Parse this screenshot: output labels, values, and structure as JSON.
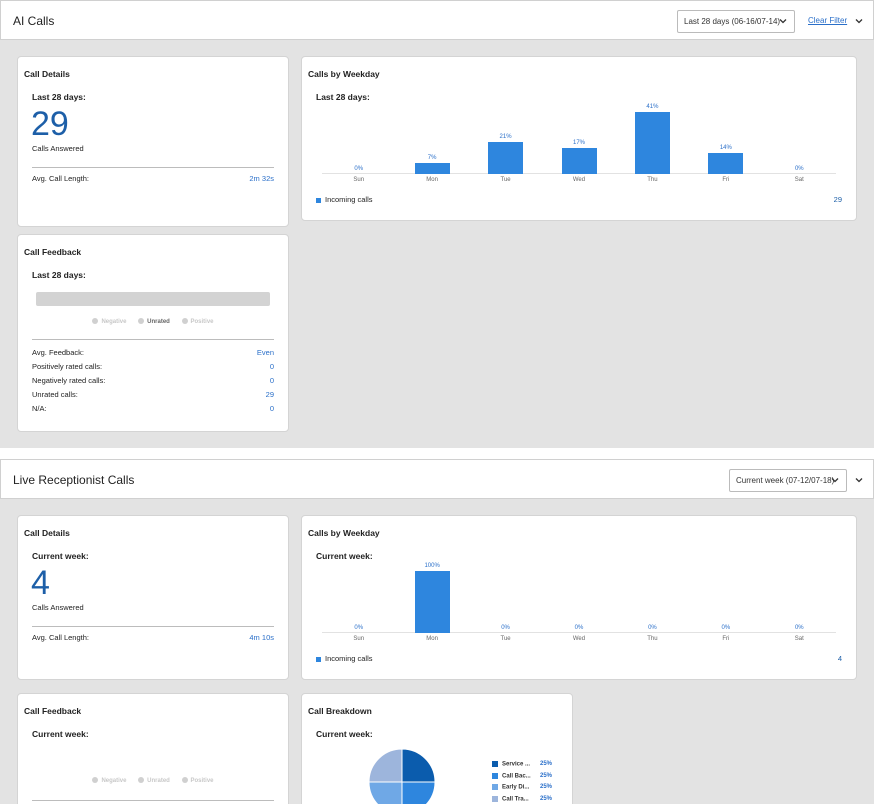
{
  "ai": {
    "title": "AI Calls",
    "filter": "Last 28 days (06-16/07-14)",
    "clear_filter": "Clear Filter",
    "details": {
      "title": "Call Details",
      "period": "Last 28 days:",
      "count": "29",
      "count_label": "Calls Answered",
      "avg_label": "Avg. Call Length:",
      "avg_value": "2m 32s"
    },
    "weekday": {
      "title": "Calls by Weekday",
      "period": "Last 28 days:",
      "legend": "Incoming calls",
      "total": "29"
    },
    "feedback": {
      "title": "Call Feedback",
      "period": "Last 28 days:",
      "legend": [
        "Negative",
        "Unrated",
        "Positive"
      ],
      "rows": [
        {
          "label": "Avg. Feedback:",
          "value": "Even"
        },
        {
          "label": "Positively rated calls:",
          "value": "0"
        },
        {
          "label": "Negatively rated calls:",
          "value": "0"
        },
        {
          "label": "Unrated calls:",
          "value": "29"
        },
        {
          "label": "N/A:",
          "value": "0"
        }
      ]
    }
  },
  "live": {
    "title": "Live Receptionist Calls",
    "filter": "Current week (07-12/07-18)",
    "details": {
      "title": "Call Details",
      "period": "Current week:",
      "count": "4",
      "count_label": "Calls Answered",
      "avg_label": "Avg. Call Length:",
      "avg_value": "4m 10s"
    },
    "weekday": {
      "title": "Calls by Weekday",
      "period": "Current week:",
      "legend": "Incoming calls",
      "total": "4"
    },
    "feedback": {
      "title": "Call Feedback",
      "period": "Current week:",
      "legend": [
        "Negative",
        "Unrated",
        "Positive"
      ]
    },
    "breakdown": {
      "title": "Call Breakdown",
      "period": "Current week:",
      "items": [
        {
          "label": "Service ...",
          "pct": "25%",
          "color": "#0b5cad"
        },
        {
          "label": "Call Bac...",
          "pct": "25%",
          "color": "#2e86de"
        },
        {
          "label": "Early Di...",
          "pct": "25%",
          "color": "#6fa8e6"
        },
        {
          "label": "Call Tra...",
          "pct": "25%",
          "color": "#9db5dc"
        }
      ]
    }
  },
  "chart_data": [
    {
      "type": "bar",
      "title": "Calls by Weekday",
      "categories": [
        "Sun",
        "Mon",
        "Tue",
        "Wed",
        "Thu",
        "Fri",
        "Sat"
      ],
      "series": [
        {
          "name": "Incoming calls",
          "values": [
            0,
            7,
            21,
            17,
            41,
            14,
            0
          ]
        }
      ],
      "value_labels": [
        "0%",
        "7%",
        "21%",
        "17%",
        "41%",
        "14%",
        "0%"
      ],
      "ylim": [
        0,
        41
      ]
    },
    {
      "type": "bar",
      "title": "Calls by Weekday",
      "categories": [
        "Sun",
        "Mon",
        "Tue",
        "Wed",
        "Thu",
        "Fri",
        "Sat"
      ],
      "series": [
        {
          "name": "Incoming calls",
          "values": [
            0,
            100,
            0,
            0,
            0,
            0,
            0
          ]
        }
      ],
      "value_labels": [
        "0%",
        "100%",
        "0%",
        "0%",
        "0%",
        "0%",
        "0%"
      ],
      "ylim": [
        0,
        100
      ]
    },
    {
      "type": "pie",
      "title": "Call Breakdown",
      "categories": [
        "Service ...",
        "Call Bac...",
        "Early Di...",
        "Call Tra..."
      ],
      "values": [
        25,
        25,
        25,
        25
      ],
      "colors": [
        "#0b5cad",
        "#2e86de",
        "#6fa8e6",
        "#9db5dc"
      ]
    }
  ]
}
